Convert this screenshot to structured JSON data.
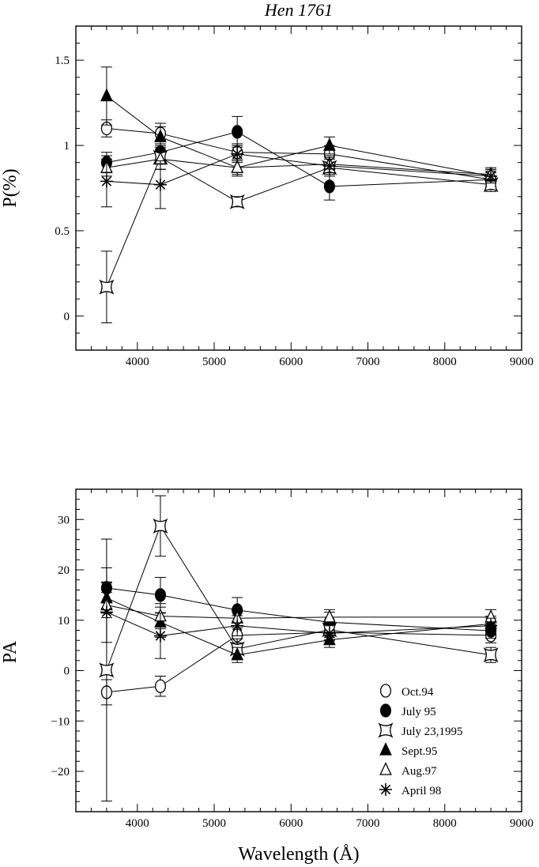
{
  "chart_data": [
    {
      "type": "scatter",
      "title": "Hen 1761",
      "xlabel": "",
      "ylabel": "P(%)",
      "xlim": [
        3200,
        9000
      ],
      "ylim": [
        -0.2,
        1.7
      ],
      "xticks": [
        4000,
        5000,
        6000,
        7000,
        8000,
        9000
      ],
      "xtick_labels": [
        "4000",
        "5000",
        "6000",
        "7000",
        "8000",
        "9000"
      ],
      "yticks": [
        0,
        0.5,
        1,
        1.5
      ],
      "ytick_labels": [
        "0",
        "0.5",
        "1",
        "1.5"
      ],
      "x": [
        3600,
        4300,
        5300,
        6500,
        8600
      ],
      "series": [
        {
          "name": "Oct.94",
          "marker": "open-circle",
          "values": [
            1.1,
            1.07,
            0.96,
            0.95,
            0.8
          ],
          "errors": [
            0.05,
            0.06,
            0.05,
            0.05,
            0.04
          ]
        },
        {
          "name": "July 95",
          "marker": "filled-circle",
          "values": [
            0.9,
            0.96,
            1.08,
            0.76,
            0.8
          ],
          "errors": [
            0.06,
            0.07,
            0.09,
            0.08,
            0.05
          ]
        },
        {
          "name": "July 23,1995",
          "marker": "star4",
          "values": [
            0.17,
            0.93,
            0.67,
            0.87,
            0.77
          ],
          "errors": [
            0.21,
            0.07,
            0.03,
            0.05,
            0.04
          ]
        },
        {
          "name": "Sept.95",
          "marker": "filled-triangle",
          "values": [
            1.29,
            1.05,
            0.87,
            1.0,
            0.82
          ],
          "errors": [
            0.17,
            0.06,
            0.04,
            0.05,
            0.04
          ]
        },
        {
          "name": "Aug.97",
          "marker": "open-triangle",
          "values": [
            0.87,
            0.92,
            0.87,
            0.89,
            0.83
          ],
          "errors": [
            0.05,
            0.06,
            0.05,
            0.05,
            0.04
          ]
        },
        {
          "name": "April 98",
          "marker": "asterisk",
          "values": [
            0.79,
            0.77,
            0.95,
            0.88,
            0.82
          ],
          "errors": [
            0.15,
            0.14,
            0.05,
            0.05,
            0.04
          ]
        }
      ]
    },
    {
      "type": "scatter",
      "title": "",
      "xlabel": "Wavelength (Å)",
      "ylabel": "PA",
      "xlim": [
        3200,
        9000
      ],
      "ylim": [
        -28,
        36
      ],
      "xticks": [
        4000,
        5000,
        6000,
        7000,
        8000,
        9000
      ],
      "xtick_labels": [
        "4000",
        "5000",
        "6000",
        "7000",
        "8000",
        "9000"
      ],
      "yticks": [
        -20,
        -10,
        0,
        10,
        20,
        30
      ],
      "ytick_labels": [
        "−20",
        "−10",
        "0",
        "10",
        "20",
        "30"
      ],
      "x": [
        3600,
        4300,
        5300,
        6500,
        8600
      ],
      "legend_position": "bottom-right",
      "series": [
        {
          "name": "Oct.94",
          "marker": "open-circle",
          "values": [
            -4.3,
            -3.1,
            7.0,
            7.6,
            7.0
          ],
          "errors": [
            2.5,
            2.0,
            1.5,
            1.5,
            1.5
          ]
        },
        {
          "name": "July 95",
          "marker": "filled-circle",
          "values": [
            16.4,
            15.0,
            12.0,
            9.6,
            7.9
          ],
          "errors": [
            4.0,
            3.5,
            2.5,
            2.0,
            1.5
          ]
        },
        {
          "name": "July 23,1995",
          "marker": "star4",
          "values": [
            0.1,
            28.7,
            4.3,
            8.1,
            3.1
          ],
          "errors": [
            26.0,
            6.0,
            2.0,
            1.5,
            1.5
          ]
        },
        {
          "name": "Sept.95",
          "marker": "filled-triangle",
          "values": [
            14.4,
            9.6,
            3.1,
            6.1,
            9.3
          ],
          "errors": [
            3.0,
            3.0,
            1.5,
            1.5,
            1.5
          ]
        },
        {
          "name": "Aug.97",
          "marker": "open-triangle",
          "values": [
            13.0,
            10.8,
            10.4,
            10.6,
            10.6
          ],
          "errors": [
            2.5,
            2.5,
            1.5,
            1.5,
            1.5
          ]
        },
        {
          "name": "April 98",
          "marker": "asterisk",
          "values": [
            11.6,
            6.9,
            8.9,
            7.4,
            8.9
          ],
          "errors": [
            6.0,
            4.5,
            2.0,
            1.5,
            1.5
          ]
        }
      ]
    }
  ]
}
